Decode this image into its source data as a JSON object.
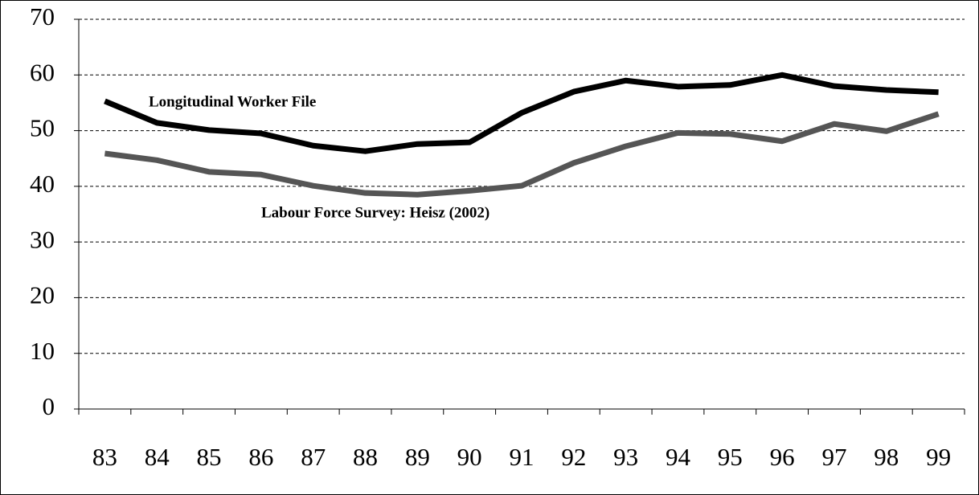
{
  "chart_data": {
    "type": "line",
    "categories": [
      "83",
      "84",
      "85",
      "86",
      "87",
      "88",
      "89",
      "90",
      "91",
      "92",
      "93",
      "94",
      "95",
      "96",
      "97",
      "98",
      "99"
    ],
    "series": [
      {
        "name": "Longitudinal Worker File",
        "color": "#000000",
        "values": [
          55.3,
          51.4,
          50.1,
          49.5,
          47.3,
          46.3,
          47.6,
          47.9,
          53.2,
          57.0,
          59.0,
          57.9,
          58.2,
          60.0,
          58.0,
          57.3,
          56.9
        ]
      },
      {
        "name": "Labour Force Survey: Heisz (2002)",
        "color": "#555555",
        "values": [
          45.9,
          44.7,
          42.6,
          42.1,
          40.1,
          38.8,
          38.5,
          39.2,
          40.1,
          44.2,
          47.2,
          49.6,
          49.4,
          48.1,
          51.2,
          49.9,
          53.0
        ]
      }
    ],
    "ylim": [
      0,
      70
    ],
    "yticks": [
      0,
      10,
      20,
      30,
      40,
      50,
      60,
      70
    ],
    "grid": true
  }
}
